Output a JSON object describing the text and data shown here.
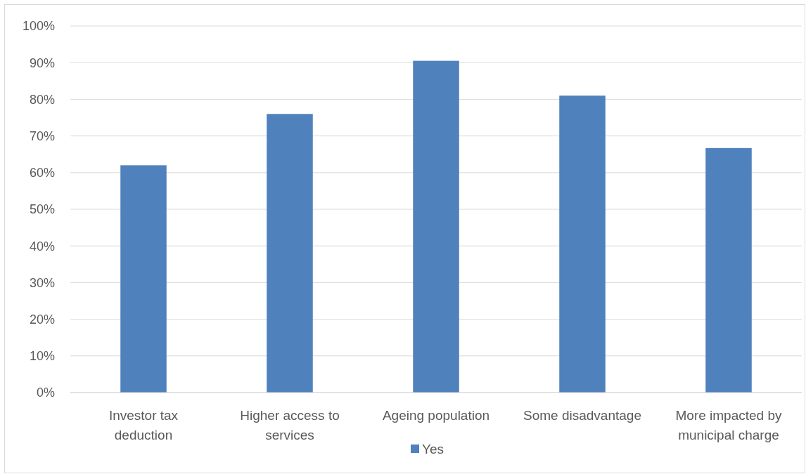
{
  "chart_data": {
    "type": "bar",
    "categories": [
      "Investor tax deduction",
      "Higher access to services",
      "Ageing population",
      "Some disadvantage",
      "More impacted by municipal charge"
    ],
    "series": [
      {
        "name": "Yes",
        "color": "#4f81bd",
        "values": [
          62,
          76,
          90.5,
          81,
          66.7
        ]
      }
    ],
    "ylim": [
      0,
      100
    ],
    "yticks": [
      {
        "value": 0,
        "label": "0%"
      },
      {
        "value": 10,
        "label": "10%"
      },
      {
        "value": 20,
        "label": "20%"
      },
      {
        "value": 30,
        "label": "30%"
      },
      {
        "value": 40,
        "label": "40%"
      },
      {
        "value": 50,
        "label": "50%"
      },
      {
        "value": 60,
        "label": "60%"
      },
      {
        "value": 70,
        "label": "70%"
      },
      {
        "value": 80,
        "label": "80%"
      },
      {
        "value": 90,
        "label": "90%"
      },
      {
        "value": 100,
        "label": "100%"
      }
    ],
    "grid": "y",
    "legend": "bottom"
  }
}
